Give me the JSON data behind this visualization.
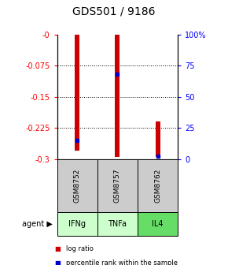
{
  "title": "GDS501 / 9186",
  "samples": [
    "GSM8752",
    "GSM8757",
    "GSM8762"
  ],
  "agents": [
    "IFNg",
    "TNFa",
    "IL4"
  ],
  "agent_colors": [
    "#ccffcc",
    "#ccffcc",
    "#66dd66"
  ],
  "log_ratios": [
    -0.28,
    -0.295,
    -0.295
  ],
  "bar_tops": [
    0.0,
    0.0,
    -0.21
  ],
  "percentile_ranks": [
    0.15,
    0.68,
    0.02
  ],
  "ylim_left": [
    -0.3,
    0.0
  ],
  "ylim_right": [
    0.0,
    1.0
  ],
  "yticks_left": [
    0.0,
    -0.075,
    -0.15,
    -0.225,
    -0.3
  ],
  "ytick_labels_left": [
    "-0",
    "-0.075",
    "-0.15",
    "-0.225",
    "-0.3"
  ],
  "yticks_right": [
    1.0,
    0.75,
    0.5,
    0.25,
    0.0
  ],
  "ytick_labels_right": [
    "100%",
    "75",
    "50",
    "25",
    "0"
  ],
  "bar_color": "#cc0000",
  "dot_color": "#0000cc",
  "sample_bg_color": "#cccccc",
  "legend_log_ratio_color": "#cc0000",
  "legend_percentile_color": "#0000cc",
  "bar_width": 0.12
}
